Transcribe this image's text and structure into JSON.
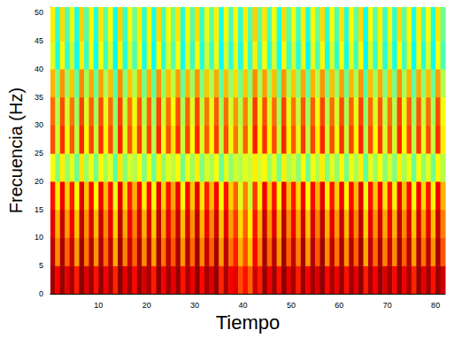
{
  "chart_data": {
    "type": "heatmap",
    "x_label": "Tiempo",
    "y_label": "Frecuencia (Hz)",
    "xlim": [
      0,
      82
    ],
    "xticks": [
      10,
      20,
      30,
      40,
      50,
      60,
      70,
      80
    ],
    "ylim": [
      0,
      51
    ],
    "yticks": [
      0,
      5,
      10,
      15,
      20,
      25,
      30,
      35,
      40,
      45,
      50
    ],
    "tick_labels": true,
    "clim": [
      0,
      100
    ],
    "x_bins": [
      0,
      1,
      2,
      3,
      4,
      5,
      6,
      7,
      8,
      9,
      10,
      11,
      12,
      13,
      14,
      15,
      16,
      17,
      18,
      19,
      20,
      21,
      22,
      23,
      24,
      25,
      26,
      27,
      28,
      29,
      30,
      31,
      32,
      33,
      34,
      35,
      36,
      37,
      38,
      39,
      40,
      41,
      42,
      43,
      44,
      45,
      46,
      47,
      48,
      49,
      50,
      51,
      52,
      53,
      54,
      55,
      56,
      57,
      58,
      59,
      60,
      61,
      62,
      63,
      64,
      65,
      66,
      67,
      68,
      69,
      70,
      71,
      72,
      73,
      74,
      75,
      76,
      77,
      78,
      79,
      80,
      81,
      82
    ],
    "y_bins": [
      0,
      5,
      10,
      15,
      20,
      25,
      30,
      35,
      40,
      45,
      51
    ],
    "cells": [
      [
        97,
        88,
        98,
        90,
        96,
        85,
        99,
        91,
        97,
        86,
        98,
        89,
        96,
        84,
        99,
        90,
        97,
        87,
        98,
        92,
        96,
        85,
        99,
        88,
        97,
        90,
        98,
        86,
        96,
        89,
        99,
        87,
        97,
        91,
        98,
        84,
        96,
        88,
        90,
        80,
        86,
        78,
        92,
        85,
        98,
        89,
        97,
        86,
        99,
        90,
        96,
        85,
        98,
        88,
        97,
        91,
        99,
        87,
        96,
        89,
        98,
        86,
        97,
        90,
        99,
        85,
        96,
        88,
        98,
        91,
        97,
        87,
        99,
        89,
        96,
        84,
        98,
        90,
        97,
        86,
        98,
        92
      ],
      [
        94,
        74,
        96,
        78,
        93,
        72,
        97,
        76,
        95,
        73,
        96,
        77,
        94,
        71,
        97,
        75,
        93,
        78,
        96,
        74,
        95,
        72,
        97,
        76,
        94,
        79,
        96,
        73,
        95,
        77,
        97,
        74,
        93,
        78,
        96,
        72,
        94,
        76,
        85,
        70,
        80,
        68,
        88,
        74,
        96,
        77,
        94,
        73,
        97,
        78,
        93,
        75,
        96,
        72,
        95,
        79,
        97,
        74,
        94,
        76,
        96,
        73,
        95,
        78,
        97,
        71,
        94,
        77,
        96,
        75,
        93,
        74,
        97,
        78,
        95,
        72,
        96,
        76,
        94,
        73,
        96,
        79
      ],
      [
        90,
        70,
        93,
        72,
        89,
        68,
        94,
        73,
        91,
        69,
        93,
        74,
        90,
        67,
        94,
        71,
        89,
        75,
        92,
        70,
        91,
        68,
        94,
        72,
        90,
        76,
        93,
        69,
        91,
        73,
        94,
        70,
        89,
        74,
        92,
        68,
        90,
        72,
        82,
        66,
        78,
        64,
        86,
        70,
        93,
        73,
        90,
        69,
        94,
        74,
        89,
        71,
        92,
        68,
        91,
        75,
        94,
        70,
        90,
        72,
        93,
        69,
        91,
        74,
        94,
        67,
        90,
        73,
        92,
        71,
        89,
        70,
        94,
        74,
        91,
        68,
        92,
        72,
        90,
        69,
        93,
        75
      ],
      [
        86,
        64,
        89,
        67,
        85,
        62,
        90,
        68,
        87,
        63,
        89,
        69,
        86,
        61,
        90,
        66,
        85,
        70,
        88,
        64,
        87,
        62,
        90,
        67,
        86,
        71,
        89,
        63,
        87,
        68,
        90,
        65,
        85,
        69,
        88,
        62,
        86,
        67,
        78,
        60,
        75,
        58,
        82,
        64,
        89,
        68,
        86,
        63,
        90,
        69,
        85,
        66,
        88,
        62,
        87,
        70,
        90,
        64,
        86,
        67,
        89,
        63,
        87,
        69,
        90,
        61,
        86,
        68,
        88,
        65,
        85,
        64,
        90,
        69,
        87,
        62,
        88,
        66,
        86,
        63,
        89,
        70
      ],
      [
        62,
        50,
        64,
        52,
        60,
        48,
        65,
        53,
        61,
        49,
        63,
        54,
        60,
        47,
        65,
        51,
        59,
        55,
        62,
        50,
        61,
        48,
        64,
        52,
        60,
        56,
        63,
        49,
        61,
        53,
        64,
        50,
        59,
        54,
        62,
        48,
        60,
        52,
        58,
        55,
        60,
        57,
        64,
        58,
        63,
        53,
        60,
        49,
        64,
        54,
        59,
        51,
        62,
        48,
        61,
        55,
        64,
        50,
        60,
        52,
        63,
        49,
        61,
        54,
        64,
        47,
        60,
        53,
        62,
        51,
        59,
        50,
        64,
        54,
        61,
        48,
        62,
        52,
        60,
        49,
        63,
        55
      ],
      [
        80,
        58,
        83,
        61,
        79,
        56,
        84,
        62,
        81,
        57,
        83,
        63,
        80,
        55,
        84,
        60,
        79,
        64,
        82,
        58,
        81,
        56,
        84,
        61,
        80,
        65,
        83,
        57,
        81,
        62,
        84,
        59,
        79,
        63,
        82,
        56,
        80,
        61,
        76,
        58,
        78,
        60,
        85,
        63,
        83,
        62,
        80,
        57,
        84,
        63,
        79,
        60,
        82,
        56,
        81,
        64,
        84,
        58,
        80,
        61,
        83,
        57,
        81,
        63,
        84,
        55,
        80,
        62,
        82,
        59,
        79,
        58,
        84,
        63,
        81,
        56,
        82,
        60,
        80,
        57,
        83,
        64
      ],
      [
        77,
        55,
        80,
        58,
        76,
        53,
        81,
        59,
        78,
        54,
        80,
        60,
        77,
        52,
        81,
        57,
        76,
        61,
        79,
        55,
        78,
        53,
        81,
        58,
        77,
        62,
        80,
        54,
        78,
        59,
        81,
        56,
        76,
        60,
        79,
        53,
        77,
        58,
        73,
        55,
        75,
        57,
        82,
        60,
        80,
        59,
        77,
        54,
        81,
        60,
        76,
        57,
        79,
        53,
        78,
        61,
        81,
        55,
        77,
        58,
        80,
        54,
        78,
        60,
        81,
        52,
        77,
        59,
        79,
        56,
        76,
        55,
        81,
        60,
        78,
        53,
        79,
        57,
        77,
        54,
        80,
        61
      ],
      [
        70,
        50,
        73,
        52,
        68,
        47,
        74,
        53,
        71,
        48,
        72,
        54,
        69,
        46,
        74,
        51,
        68,
        55,
        71,
        49,
        70,
        47,
        73,
        52,
        69,
        56,
        72,
        48,
        70,
        53,
        73,
        50,
        68,
        54,
        71,
        47,
        69,
        52,
        66,
        49,
        68,
        51,
        74,
        54,
        72,
        53,
        69,
        48,
        73,
        54,
        68,
        51,
        71,
        47,
        70,
        55,
        73,
        49,
        69,
        52,
        72,
        48,
        70,
        54,
        73,
        46,
        69,
        53,
        71,
        50,
        68,
        49,
        73,
        54,
        70,
        47,
        71,
        51,
        69,
        48,
        72,
        55
      ],
      [
        60,
        40,
        63,
        42,
        58,
        38,
        64,
        43,
        61,
        39,
        62,
        44,
        59,
        37,
        64,
        41,
        58,
        45,
        61,
        40,
        60,
        38,
        63,
        42,
        59,
        46,
        62,
        39,
        60,
        43,
        63,
        41,
        58,
        44,
        61,
        38,
        59,
        42,
        60,
        40,
        61,
        43,
        64,
        45,
        62,
        43,
        59,
        39,
        63,
        44,
        58,
        41,
        61,
        37,
        60,
        45,
        63,
        40,
        59,
        42,
        62,
        39,
        60,
        44,
        63,
        37,
        59,
        43,
        61,
        41,
        58,
        40,
        63,
        44,
        60,
        38,
        61,
        42,
        59,
        39,
        62,
        45
      ],
      [
        64,
        42,
        66,
        45,
        61,
        40,
        67,
        46,
        63,
        41,
        65,
        47,
        62,
        39,
        67,
        43,
        61,
        48,
        64,
        42,
        63,
        40,
        66,
        45,
        62,
        49,
        65,
        41,
        63,
        46,
        66,
        43,
        61,
        47,
        64,
        40,
        62,
        45,
        63,
        42,
        64,
        46,
        67,
        48,
        65,
        45,
        62,
        41,
        66,
        47,
        61,
        44,
        64,
        40,
        63,
        48,
        66,
        42,
        62,
        45,
        65,
        41,
        63,
        47,
        66,
        39,
        62,
        46,
        64,
        43,
        61,
        42,
        66,
        47,
        63,
        40,
        64,
        45,
        62,
        41,
        65,
        48
      ]
    ]
  }
}
